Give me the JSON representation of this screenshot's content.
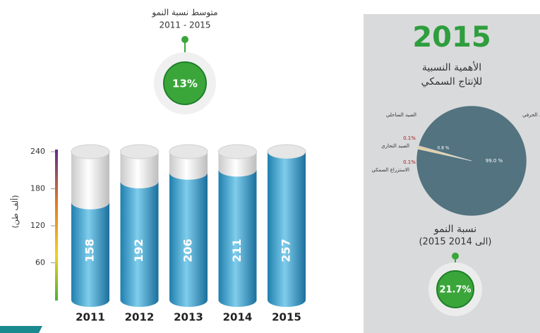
{
  "chart_data": [
    {
      "type": "bar",
      "ylabel": "(ألف طن)",
      "categories": [
        "2011",
        "2012",
        "2013",
        "2014",
        "2015"
      ],
      "values": [
        158,
        192,
        206,
        211,
        257
      ],
      "ylim": [
        0,
        240
      ],
      "yticks": [
        60,
        120,
        180,
        240
      ],
      "color": "#2f93c4",
      "annotations": {
        "growth_label": "متوسط نسبة النمو",
        "growth_period": "2011 - 2015",
        "growth_value": "13%"
      }
    },
    {
      "type": "pie",
      "title": [
        "الأهمية النسبية",
        "للإنتاج السمكي"
      ],
      "categories": [
        "الصيد الحرفي",
        "الصيد الساحلي",
        "الصيد التجاري",
        "الاستزراع السمكي"
      ],
      "values": [
        99.0,
        0.8,
        0.1,
        0.1
      ],
      "value_labels": [
        "99.0 %",
        "0.8 %",
        "0.1%",
        "0.1%"
      ],
      "colors": [
        "#52737f",
        "#e4d09f",
        "#8c2a2a",
        "#5e1a1a"
      ],
      "annotations": {
        "year": "2015",
        "growth_label": "نسبة النمو",
        "growth_period": "(2015 الى 2014)",
        "growth_value": "21.7%"
      }
    }
  ]
}
